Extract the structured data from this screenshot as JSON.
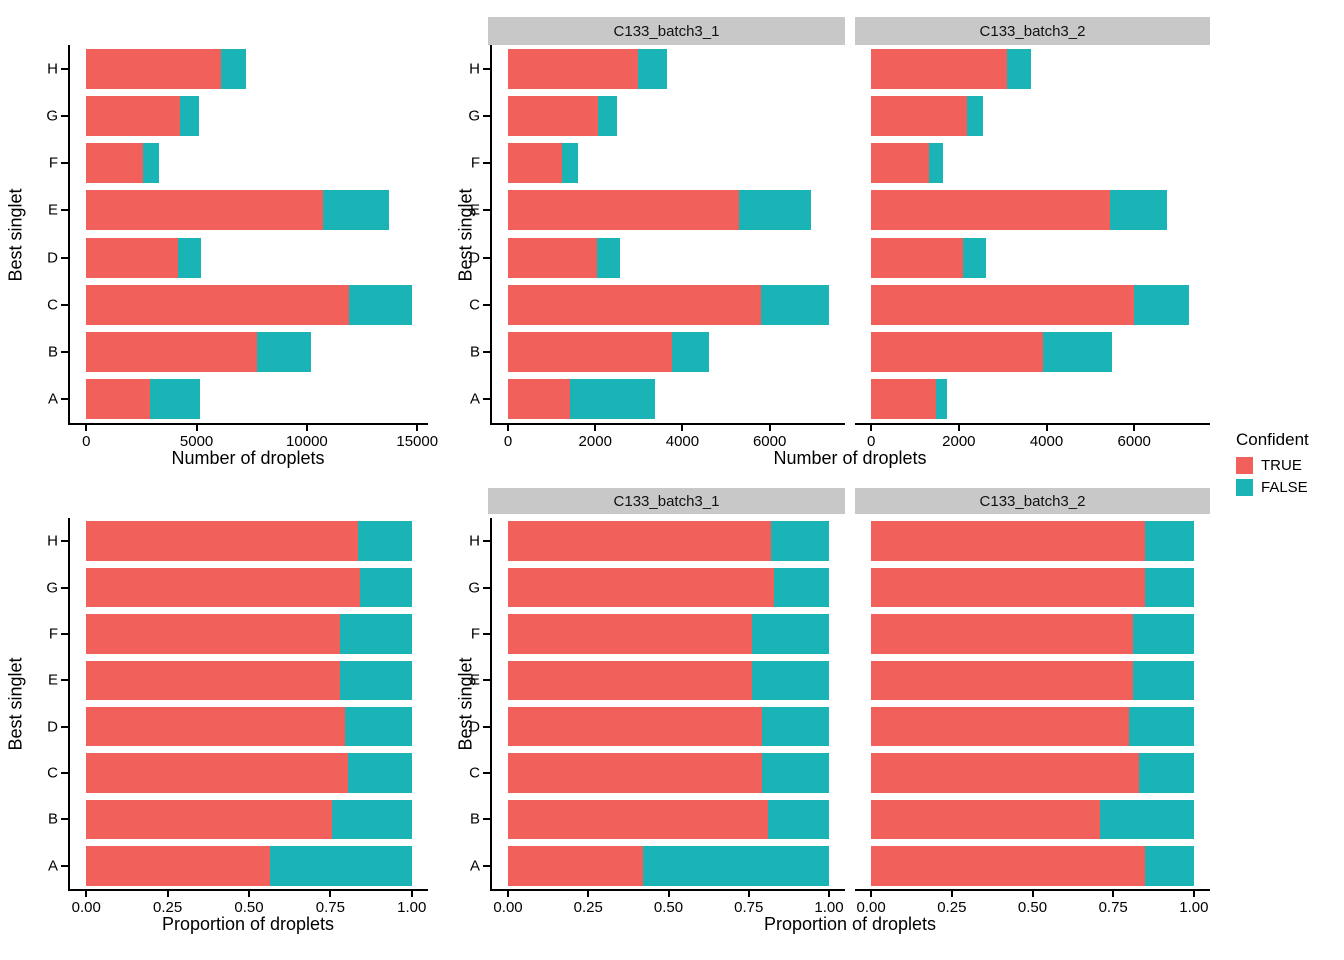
{
  "figure": {
    "legend": {
      "title": "Confident",
      "position": "right",
      "items": [
        {
          "label": "TRUE",
          "color": "#F2605C"
        },
        {
          "label": "FALSE",
          "color": "#1AB3B6"
        }
      ]
    },
    "colors": {
      "confident_true": "#F2605C",
      "confident_false": "#1AB3B6",
      "facet_strip_bg": "#C8C8C8",
      "axis_line": "#000000",
      "text": "#000000",
      "background": "#FFFFFF"
    }
  },
  "chart_data": [
    {
      "id": "counts-all",
      "type": "bar",
      "orientation": "horizontal",
      "stacked": true,
      "xlabel": "Number of droplets",
      "ylabel": "Best singlet",
      "categories_top_to_bottom": [
        "H",
        "G",
        "F",
        "E",
        "D",
        "C",
        "B",
        "A"
      ],
      "x_ticks": [
        0,
        5000,
        10000,
        15000
      ],
      "x_tick_labels": [
        "0",
        "5000",
        "10000",
        "15000"
      ],
      "x_max_data": 14750,
      "xlim": [
        0,
        15480
      ],
      "grid": false,
      "series": [
        {
          "name": "TRUE",
          "color": "#F2605C",
          "values": [
            6100,
            4250,
            2550,
            10750,
            4150,
            11900,
            7750,
            2900
          ]
        },
        {
          "name": "FALSE",
          "color": "#1AB3B6",
          "values": [
            1150,
            850,
            750,
            2950,
            1050,
            2850,
            2450,
            2250
          ]
        }
      ]
    },
    {
      "id": "counts-by-sample",
      "type": "bar",
      "orientation": "horizontal",
      "stacked": true,
      "xlabel": "Number of droplets",
      "ylabel": "Best singlet",
      "categories_top_to_bottom": [
        "H",
        "G",
        "F",
        "E",
        "D",
        "C",
        "B",
        "A"
      ],
      "x_ticks": [
        0,
        2000,
        4000,
        6000
      ],
      "x_tick_labels": [
        "0",
        "2000",
        "4000",
        "6000"
      ],
      "x_max_data": 7360,
      "xlim": [
        0,
        7730
      ],
      "grid": false,
      "facets": [
        {
          "label": "C133_batch3_1",
          "series": [
            {
              "name": "TRUE",
              "color": "#F2605C",
              "values": [
                2980,
                2070,
                1230,
                5290,
                2040,
                5800,
                3750,
                1430
              ]
            },
            {
              "name": "FALSE",
              "color": "#1AB3B6",
              "values": [
                670,
                430,
                375,
                1660,
                520,
                1560,
                855,
                1940
              ]
            }
          ]
        },
        {
          "label": "C133_batch3_2",
          "series": [
            {
              "name": "TRUE",
              "color": "#F2605C",
              "values": [
                3100,
                2180,
                1320,
                5450,
                2100,
                6000,
                3920,
                1470
              ]
            },
            {
              "name": "FALSE",
              "color": "#1AB3B6",
              "values": [
                550,
                380,
                315,
                1300,
                510,
                1250,
                1580,
                250
              ]
            }
          ]
        }
      ]
    },
    {
      "id": "prop-all",
      "type": "bar",
      "orientation": "horizontal",
      "stacked": true,
      "xlabel": "Proportion of droplets",
      "ylabel": "Best singlet",
      "categories_top_to_bottom": [
        "H",
        "G",
        "F",
        "E",
        "D",
        "C",
        "B",
        "A"
      ],
      "x_ticks": [
        0,
        0.25,
        0.5,
        0.75,
        1
      ],
      "x_tick_labels": [
        "0.00",
        "0.25",
        "0.50",
        "0.75",
        "1.00"
      ],
      "x_max_data": 1,
      "xlim": [
        0,
        1.05
      ],
      "grid": false,
      "series": [
        {
          "name": "TRUE",
          "color": "#F2605C",
          "values": [
            0.835,
            0.84,
            0.78,
            0.78,
            0.795,
            0.805,
            0.755,
            0.565
          ]
        },
        {
          "name": "FALSE",
          "color": "#1AB3B6",
          "values": [
            0.165,
            0.16,
            0.22,
            0.22,
            0.205,
            0.195,
            0.245,
            0.435
          ]
        }
      ]
    },
    {
      "id": "prop-by-sample",
      "type": "bar",
      "orientation": "horizontal",
      "stacked": true,
      "xlabel": "Proportion of droplets",
      "ylabel": "Best singlet",
      "categories_top_to_bottom": [
        "H",
        "G",
        "F",
        "E",
        "D",
        "C",
        "B",
        "A"
      ],
      "x_ticks": [
        0,
        0.25,
        0.5,
        0.75,
        1
      ],
      "x_tick_labels": [
        "0.00",
        "0.25",
        "0.50",
        "0.75",
        "1.00"
      ],
      "x_max_data": 1,
      "xlim": [
        0,
        1.05
      ],
      "grid": false,
      "facets": [
        {
          "label": "C133_batch3_1",
          "series": [
            {
              "name": "TRUE",
              "color": "#F2605C",
              "values": [
                0.82,
                0.83,
                0.76,
                0.76,
                0.79,
                0.79,
                0.81,
                0.42
              ]
            },
            {
              "name": "FALSE",
              "color": "#1AB3B6",
              "values": [
                0.18,
                0.17,
                0.24,
                0.24,
                0.21,
                0.21,
                0.19,
                0.58
              ]
            }
          ]
        },
        {
          "label": "C133_batch3_2",
          "series": [
            {
              "name": "TRUE",
              "color": "#F2605C",
              "values": [
                0.85,
                0.85,
                0.81,
                0.81,
                0.8,
                0.83,
                0.71,
                0.85
              ]
            },
            {
              "name": "FALSE",
              "color": "#1AB3B6",
              "values": [
                0.15,
                0.15,
                0.19,
                0.19,
                0.2,
                0.17,
                0.29,
                0.15
              ]
            }
          ]
        }
      ]
    }
  ]
}
